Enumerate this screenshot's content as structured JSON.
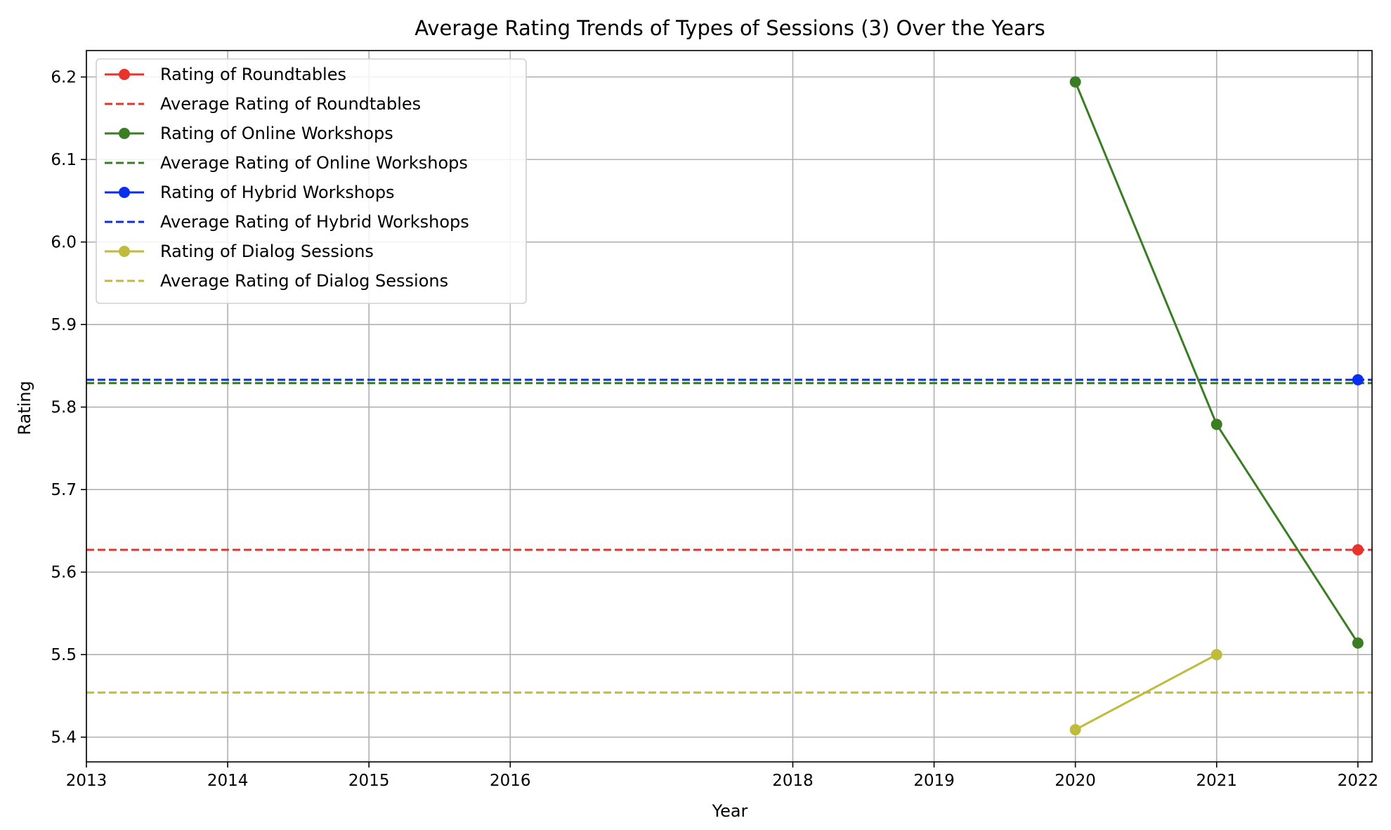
{
  "chart_data": {
    "type": "line",
    "title": "Average Rating Trends of Types of Sessions (3) Over the Years",
    "xlabel": "Year",
    "ylabel": "Rating",
    "xlim": [
      2013,
      2022.1
    ],
    "ylim": [
      5.37,
      6.232
    ],
    "xticks": [
      2013,
      2014,
      2015,
      2016,
      2018,
      2019,
      2020,
      2021,
      2022
    ],
    "yticks": [
      5.4,
      5.5,
      5.6,
      5.7,
      5.8,
      5.9,
      6.0,
      6.1,
      6.2
    ],
    "grid": true,
    "legend_position": "top-left",
    "series": [
      {
        "name": "Rating of Roundtables",
        "color": "#e8332a",
        "style": "solid-marker",
        "points": [
          {
            "x": 2022,
            "y": 5.627
          }
        ]
      },
      {
        "name": "Average Rating of Roundtables",
        "color": "#e8332a",
        "style": "dashed",
        "value": 5.627
      },
      {
        "name": "Rating of Online Workshops",
        "color": "#3a7d22",
        "style": "solid-marker",
        "points": [
          {
            "x": 2020,
            "y": 6.194
          },
          {
            "x": 2021,
            "y": 5.779
          },
          {
            "x": 2022,
            "y": 5.514
          }
        ]
      },
      {
        "name": "Average Rating of Online Workshops",
        "color": "#3a7d22",
        "style": "dashed",
        "value": 5.829
      },
      {
        "name": "Rating of Hybrid Workshops",
        "color": "#0a2ef0",
        "style": "solid-marker",
        "points": [
          {
            "x": 2022,
            "y": 5.833
          }
        ]
      },
      {
        "name": "Average Rating of Hybrid Workshops",
        "color": "#0a2ef0",
        "style": "dashed",
        "value": 5.833
      },
      {
        "name": "Rating of Dialog Sessions",
        "color": "#bfbb3b",
        "style": "solid-marker",
        "points": [
          {
            "x": 2020,
            "y": 5.409
          },
          {
            "x": 2021,
            "y": 5.5
          }
        ]
      },
      {
        "name": "Average Rating of Dialog Sessions",
        "color": "#bfbb3b",
        "style": "dashed",
        "value": 5.454
      }
    ]
  }
}
